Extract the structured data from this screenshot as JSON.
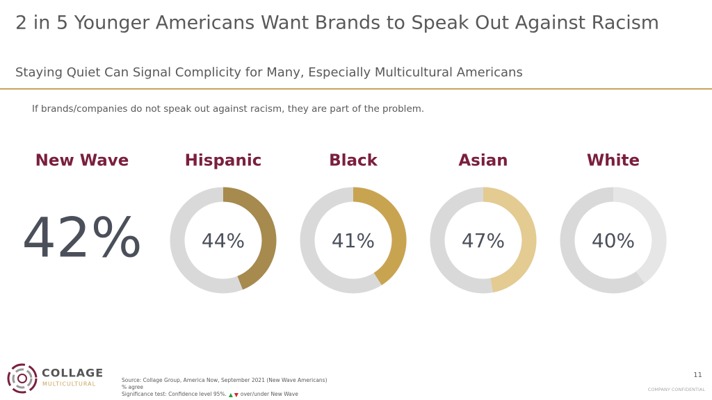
{
  "title": "2 in 5 Younger Americans Want Brands to Speak Out Against Racism",
  "subtitle": "Staying Quiet Can Signal Complicity for Many, Especially Multicultural Americans",
  "question": "If brands/companies do not speak out against racism, they are part of the problem.",
  "headline": {
    "label": "New Wave",
    "value": 42,
    "value_label": "42%"
  },
  "chart_data": {
    "type": "donut",
    "categories": [
      "Hispanic",
      "Black",
      "Asian",
      "White"
    ],
    "values": [
      44,
      41,
      47,
      40
    ],
    "value_labels": [
      "44%",
      "41%",
      "47%",
      "40%"
    ],
    "colors": [
      "#a68a4e",
      "#c9a450",
      "#e3cb92",
      "#e6e6e6"
    ],
    "track_color": "#d9d9d9"
  },
  "footer": {
    "logo_top": "COLLAGE",
    "logo_bottom": "MULTICULTURAL",
    "source": "Source: Collage Group, America Now, September 2021 (New Wave Americans)",
    "note": "% agree",
    "significance": "Significance test: Confidence level 95%.",
    "significance_end": "over/under New Wave",
    "page": "11",
    "confidential": "COMPANY CONFIDENTIAL"
  }
}
